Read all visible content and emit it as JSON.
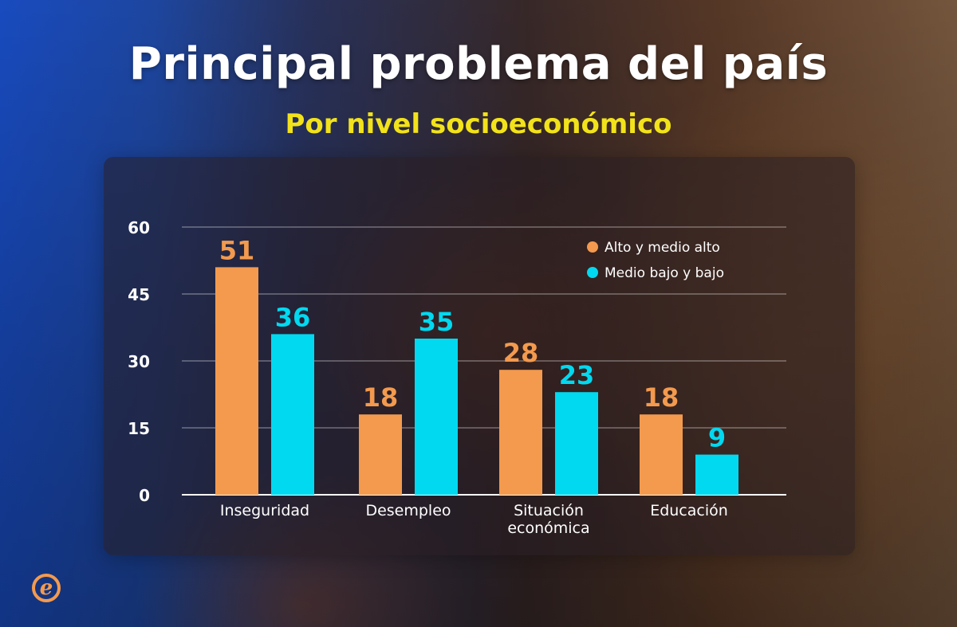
{
  "header": {
    "title": "Principal problema del país",
    "subtitle": "Por nivel socioeconómico"
  },
  "colors": {
    "series_1": "#f39a4e",
    "series_2": "#00d9f0",
    "title": "#ffffff",
    "subtitle": "#f2e21a"
  },
  "brand": {
    "logo_letter": "e",
    "logo_color": "#f39a4e",
    "logo_icon": "e-logo-icon"
  },
  "chart_data": {
    "type": "bar",
    "categories": [
      [
        "Inseguridad"
      ],
      [
        "Desempleo"
      ],
      [
        "Situación",
        "económica"
      ],
      [
        "Educación"
      ]
    ],
    "series": [
      {
        "name": "Alto y medio alto",
        "values": [
          51,
          18,
          28,
          18
        ]
      },
      {
        "name": "Medio bajo y bajo",
        "values": [
          36,
          35,
          23,
          9
        ]
      }
    ],
    "ylim": [
      0,
      60
    ],
    "yticks": [
      "0",
      "15",
      "30",
      "45",
      "60"
    ],
    "grid": true,
    "legend_position": "top-right",
    "data_labels": true
  }
}
